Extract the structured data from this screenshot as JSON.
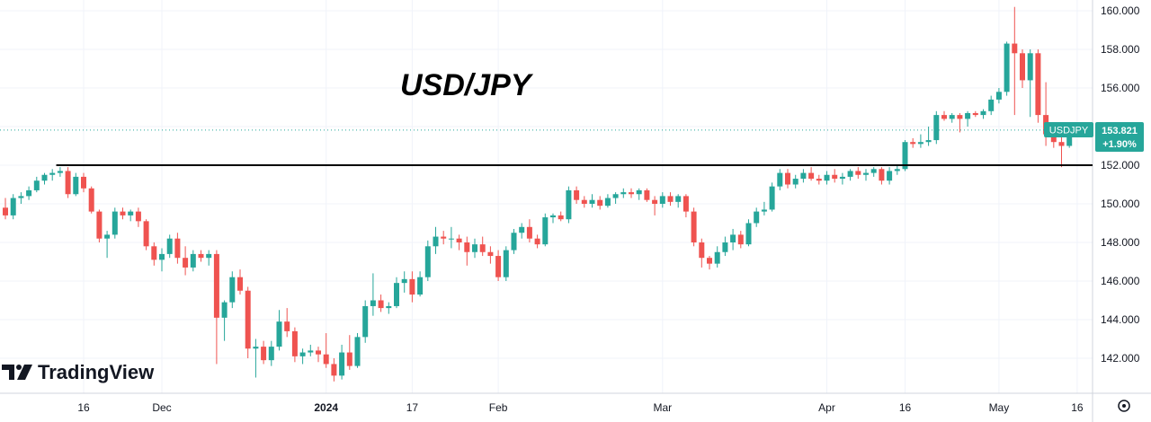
{
  "chart_data": {
    "type": "candlestick",
    "title": "USD/JPY",
    "symbol": "USDJPY",
    "last_price": "153.821",
    "change_pct": "+1.90%",
    "support_level": 152.0,
    "ylim": [
      140.5,
      160.5
    ],
    "yticks": [
      "160.000",
      "158.000",
      "156.000",
      "154.000",
      "152.000",
      "150.000",
      "148.000",
      "146.000",
      "144.000",
      "142.000"
    ],
    "ytick_values": [
      160,
      158,
      156,
      154,
      152,
      150,
      148,
      146,
      144,
      142
    ],
    "xticks": [
      {
        "label": "16",
        "index": 10,
        "bold": false
      },
      {
        "label": "Dec",
        "index": 20,
        "bold": false
      },
      {
        "label": "2024",
        "index": 41,
        "bold": true
      },
      {
        "label": "17",
        "index": 52,
        "bold": false
      },
      {
        "label": "Feb",
        "index": 63,
        "bold": false
      },
      {
        "label": "Mar",
        "index": 84,
        "bold": false
      },
      {
        "label": "Apr",
        "index": 105,
        "bold": false
      },
      {
        "label": "16",
        "index": 115,
        "bold": false
      },
      {
        "label": "May",
        "index": 127,
        "bold": false
      },
      {
        "label": "16",
        "index": 137,
        "bold": false
      }
    ],
    "candles": [
      [
        149.8,
        150.3,
        149.2,
        149.4
      ],
      [
        149.4,
        150.5,
        149.2,
        150.3
      ],
      [
        150.3,
        150.6,
        150.0,
        150.4
      ],
      [
        150.4,
        150.9,
        150.2,
        150.7
      ],
      [
        150.7,
        151.4,
        150.6,
        151.2
      ],
      [
        151.2,
        151.6,
        151.0,
        151.5
      ],
      [
        151.5,
        151.8,
        151.2,
        151.6
      ],
      [
        151.6,
        151.9,
        151.4,
        151.7
      ],
      [
        151.7,
        151.9,
        150.3,
        150.5
      ],
      [
        150.5,
        151.6,
        150.4,
        151.4
      ],
      [
        151.4,
        151.6,
        150.6,
        150.8
      ],
      [
        150.8,
        150.9,
        149.5,
        149.6
      ],
      [
        149.6,
        149.7,
        148.0,
        148.2
      ],
      [
        148.2,
        148.6,
        147.2,
        148.4
      ],
      [
        148.4,
        149.8,
        148.2,
        149.6
      ],
      [
        149.6,
        149.8,
        149.2,
        149.4
      ],
      [
        149.4,
        149.7,
        149.1,
        149.6
      ],
      [
        149.6,
        149.8,
        148.8,
        149.1
      ],
      [
        149.1,
        149.2,
        147.6,
        147.8
      ],
      [
        147.8,
        148.0,
        146.8,
        147.1
      ],
      [
        147.1,
        147.7,
        146.5,
        147.4
      ],
      [
        147.4,
        148.4,
        147.2,
        148.2
      ],
      [
        148.2,
        148.5,
        146.9,
        147.2
      ],
      [
        147.2,
        147.8,
        146.3,
        146.7
      ],
      [
        146.7,
        147.6,
        146.5,
        147.4
      ],
      [
        147.4,
        147.6,
        147.0,
        147.2
      ],
      [
        147.2,
        147.6,
        146.8,
        147.4
      ],
      [
        147.4,
        147.6,
        141.7,
        144.1
      ],
      [
        144.1,
        145.0,
        142.9,
        144.9
      ],
      [
        144.9,
        146.5,
        144.6,
        146.2
      ],
      [
        146.2,
        146.6,
        145.3,
        145.5
      ],
      [
        145.5,
        145.7,
        142.0,
        142.5
      ],
      [
        142.5,
        143.0,
        141.0,
        142.6
      ],
      [
        142.6,
        142.9,
        141.7,
        141.9
      ],
      [
        141.9,
        142.9,
        141.6,
        142.6
      ],
      [
        142.6,
        144.5,
        142.4,
        143.9
      ],
      [
        143.9,
        144.6,
        143.1,
        143.4
      ],
      [
        143.4,
        143.6,
        141.8,
        142.1
      ],
      [
        142.1,
        142.5,
        141.7,
        142.3
      ],
      [
        142.3,
        142.7,
        142.1,
        142.4
      ],
      [
        142.4,
        142.6,
        141.8,
        142.2
      ],
      [
        142.2,
        143.3,
        141.5,
        141.7
      ],
      [
        141.7,
        142.0,
        140.8,
        141.1
      ],
      [
        141.1,
        142.7,
        140.9,
        142.3
      ],
      [
        142.3,
        143.2,
        141.4,
        141.6
      ],
      [
        141.6,
        143.3,
        141.5,
        143.1
      ],
      [
        143.1,
        145.0,
        142.8,
        144.7
      ],
      [
        144.7,
        146.4,
        144.2,
        145.0
      ],
      [
        145.0,
        145.3,
        144.4,
        144.6
      ],
      [
        144.6,
        144.9,
        144.3,
        144.7
      ],
      [
        144.7,
        146.2,
        144.6,
        145.9
      ],
      [
        145.9,
        146.5,
        145.4,
        146.1
      ],
      [
        146.1,
        146.5,
        144.9,
        145.3
      ],
      [
        145.3,
        146.5,
        145.2,
        146.2
      ],
      [
        146.2,
        148.1,
        146.0,
        147.8
      ],
      [
        147.8,
        148.8,
        147.4,
        148.3
      ],
      [
        148.3,
        148.6,
        147.9,
        148.2
      ],
      [
        148.2,
        148.8,
        147.7,
        148.2
      ],
      [
        148.2,
        148.4,
        147.6,
        148.0
      ],
      [
        148.0,
        148.3,
        146.8,
        147.5
      ],
      [
        147.5,
        148.2,
        147.2,
        147.9
      ],
      [
        147.9,
        148.3,
        147.3,
        147.5
      ],
      [
        147.5,
        147.8,
        146.9,
        147.3
      ],
      [
        147.3,
        147.6,
        146.0,
        146.2
      ],
      [
        146.2,
        147.8,
        146.0,
        147.6
      ],
      [
        147.6,
        148.7,
        147.4,
        148.5
      ],
      [
        148.5,
        149.0,
        148.2,
        148.8
      ],
      [
        148.8,
        149.2,
        148.0,
        148.2
      ],
      [
        148.2,
        148.4,
        147.7,
        147.9
      ],
      [
        147.9,
        149.5,
        147.8,
        149.3
      ],
      [
        149.3,
        149.5,
        149.0,
        149.4
      ],
      [
        149.4,
        149.6,
        149.1,
        149.2
      ],
      [
        149.2,
        150.9,
        149.0,
        150.7
      ],
      [
        150.7,
        150.9,
        150.0,
        150.2
      ],
      [
        150.2,
        150.4,
        149.8,
        150.0
      ],
      [
        150.0,
        150.5,
        149.8,
        150.2
      ],
      [
        150.2,
        150.4,
        149.7,
        149.9
      ],
      [
        149.9,
        150.5,
        149.8,
        150.3
      ],
      [
        150.3,
        150.6,
        150.0,
        150.5
      ],
      [
        150.5,
        150.8,
        150.3,
        150.6
      ],
      [
        150.6,
        150.8,
        150.3,
        150.5
      ],
      [
        150.5,
        150.8,
        150.2,
        150.7
      ],
      [
        150.7,
        150.8,
        150.1,
        150.2
      ],
      [
        150.2,
        150.4,
        149.4,
        150.0
      ],
      [
        150.0,
        150.6,
        149.8,
        150.4
      ],
      [
        150.4,
        150.6,
        149.9,
        150.1
      ],
      [
        150.1,
        150.5,
        149.8,
        150.4
      ],
      [
        150.4,
        150.5,
        149.3,
        149.6
      ],
      [
        149.6,
        149.8,
        147.8,
        148.0
      ],
      [
        148.0,
        148.2,
        146.7,
        147.2
      ],
      [
        147.2,
        147.3,
        146.6,
        146.9
      ],
      [
        146.9,
        147.8,
        146.7,
        147.5
      ],
      [
        147.5,
        148.3,
        147.3,
        148.0
      ],
      [
        148.0,
        148.7,
        147.6,
        148.4
      ],
      [
        148.4,
        148.6,
        147.7,
        147.9
      ],
      [
        147.9,
        149.2,
        147.8,
        149.0
      ],
      [
        149.0,
        149.8,
        148.8,
        149.6
      ],
      [
        149.6,
        150.1,
        149.4,
        149.7
      ],
      [
        149.7,
        151.1,
        149.6,
        150.9
      ],
      [
        150.9,
        151.8,
        150.7,
        151.6
      ],
      [
        151.6,
        151.8,
        150.8,
        151.0
      ],
      [
        151.0,
        151.5,
        150.8,
        151.3
      ],
      [
        151.3,
        151.8,
        151.1,
        151.6
      ],
      [
        151.6,
        151.9,
        151.2,
        151.3
      ],
      [
        151.3,
        151.5,
        151.0,
        151.2
      ],
      [
        151.2,
        151.7,
        151.0,
        151.5
      ],
      [
        151.5,
        151.8,
        151.1,
        151.3
      ],
      [
        151.3,
        151.6,
        151.0,
        151.4
      ],
      [
        151.4,
        151.8,
        151.2,
        151.7
      ],
      [
        151.7,
        151.9,
        151.3,
        151.5
      ],
      [
        151.5,
        151.8,
        151.2,
        151.6
      ],
      [
        151.6,
        151.9,
        151.4,
        151.8
      ],
      [
        151.8,
        151.9,
        151.0,
        151.2
      ],
      [
        151.2,
        151.9,
        151.0,
        151.7
      ],
      [
        151.7,
        152.0,
        151.5,
        151.8
      ],
      [
        151.8,
        153.3,
        151.7,
        153.2
      ],
      [
        153.2,
        153.4,
        152.9,
        153.1
      ],
      [
        153.1,
        153.6,
        152.9,
        153.2
      ],
      [
        153.2,
        154.0,
        153.0,
        153.3
      ],
      [
        153.3,
        154.8,
        153.1,
        154.6
      ],
      [
        154.6,
        154.8,
        154.3,
        154.4
      ],
      [
        154.4,
        154.7,
        154.2,
        154.6
      ],
      [
        154.6,
        154.7,
        153.7,
        154.4
      ],
      [
        154.4,
        154.8,
        154.0,
        154.7
      ],
      [
        154.7,
        154.8,
        154.5,
        154.6
      ],
      [
        154.6,
        154.9,
        154.4,
        154.8
      ],
      [
        154.8,
        155.6,
        154.6,
        155.4
      ],
      [
        155.4,
        156.0,
        155.2,
        155.8
      ],
      [
        155.8,
        158.4,
        155.6,
        158.3
      ],
      [
        158.3,
        160.2,
        154.6,
        157.8
      ],
      [
        157.8,
        158.0,
        156.0,
        156.4
      ],
      [
        156.4,
        158.0,
        154.5,
        157.8
      ],
      [
        157.8,
        158.0,
        154.2,
        154.6
      ],
      [
        154.6,
        156.3,
        153.0,
        153.6
      ],
      [
        153.6,
        154.0,
        152.9,
        153.2
      ],
      [
        153.2,
        153.8,
        151.9,
        153.0
      ],
      [
        153.0,
        153.9,
        152.9,
        153.8
      ]
    ]
  },
  "watermark": "TradingView",
  "colors": {
    "up": "#26a69a",
    "down": "#ef5350",
    "support": "#000000",
    "grid": "#f0f3fa",
    "badge": "#26a69a"
  }
}
